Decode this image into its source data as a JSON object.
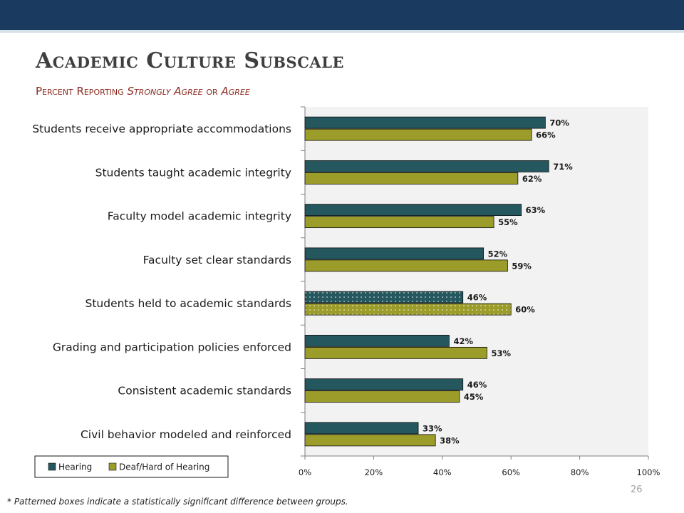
{
  "slide": {
    "title": "Academic Culture Subscale",
    "subtitle_parts": [
      "Percent Reporting ",
      "Strongly Agree",
      " or ",
      "Agree"
    ],
    "footnote": "* Patterned boxes indicate a statistically significant difference between groups.",
    "page_number": "26"
  },
  "colors": {
    "header_bar": "#1b3a5f",
    "hearing": "#24575e",
    "deaf": "#9c9c2b",
    "plot_bg": "#f2f2f2"
  },
  "chart_data": {
    "type": "bar",
    "orientation": "horizontal",
    "categories": [
      "Students receive appropriate accommodations",
      "Students taught academic integrity",
      "Faculty model academic integrity",
      "Faculty set clear standards",
      "Students held to academic standards",
      "Grading and participation policies enforced",
      "Consistent academic standards",
      "Civil behavior modeled and reinforced"
    ],
    "series": [
      {
        "name": "Hearing",
        "values": [
          70,
          71,
          63,
          52,
          46,
          42,
          46,
          33
        ]
      },
      {
        "name": "Deaf/Hard of Hearing",
        "values": [
          66,
          62,
          55,
          59,
          60,
          53,
          45,
          38
        ]
      }
    ],
    "data_labels": [
      [
        "70%",
        "71%",
        "63%",
        "52%",
        "46%",
        "42%",
        "46%",
        "33%"
      ],
      [
        "66%",
        "62%",
        "55%",
        "59%",
        "60%",
        "53%",
        "45%",
        "38%"
      ]
    ],
    "significant": [
      false,
      false,
      false,
      false,
      true,
      false,
      false,
      false
    ],
    "xlim": [
      0,
      100
    ],
    "xticks": [
      0,
      20,
      40,
      60,
      80,
      100
    ],
    "xtick_labels": [
      "0%",
      "20%",
      "40%",
      "60%",
      "80%",
      "100%"
    ],
    "grid": false,
    "legend_position": "bottom-left"
  }
}
